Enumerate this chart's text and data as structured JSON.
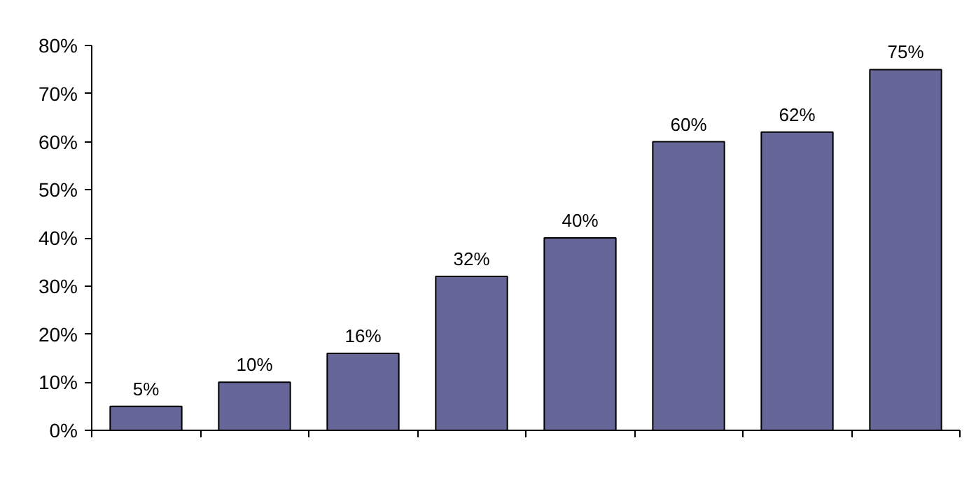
{
  "chart_data": {
    "type": "bar",
    "categories": [
      null,
      null,
      null,
      null,
      null,
      null,
      null,
      null
    ],
    "values": [
      5,
      10,
      16,
      32,
      40,
      60,
      62,
      75
    ],
    "value_labels": [
      "5%",
      "10%",
      "16%",
      "32%",
      "40%",
      "60%",
      "62%",
      "75%"
    ],
    "color": "#666699",
    "ylim": [
      0,
      80
    ],
    "yticks": [
      {
        "value": 0,
        "label": "0%"
      },
      {
        "value": 10,
        "label": "10%"
      },
      {
        "value": 20,
        "label": "20%"
      },
      {
        "value": 30,
        "label": "30%"
      },
      {
        "value": 40,
        "label": "40%"
      },
      {
        "value": 50,
        "label": "50%"
      },
      {
        "value": 60,
        "label": "60%"
      },
      {
        "value": 70,
        "label": "70%"
      },
      {
        "value": 80,
        "label": "80%"
      }
    ],
    "tick_labels": "y",
    "grid": false
  }
}
